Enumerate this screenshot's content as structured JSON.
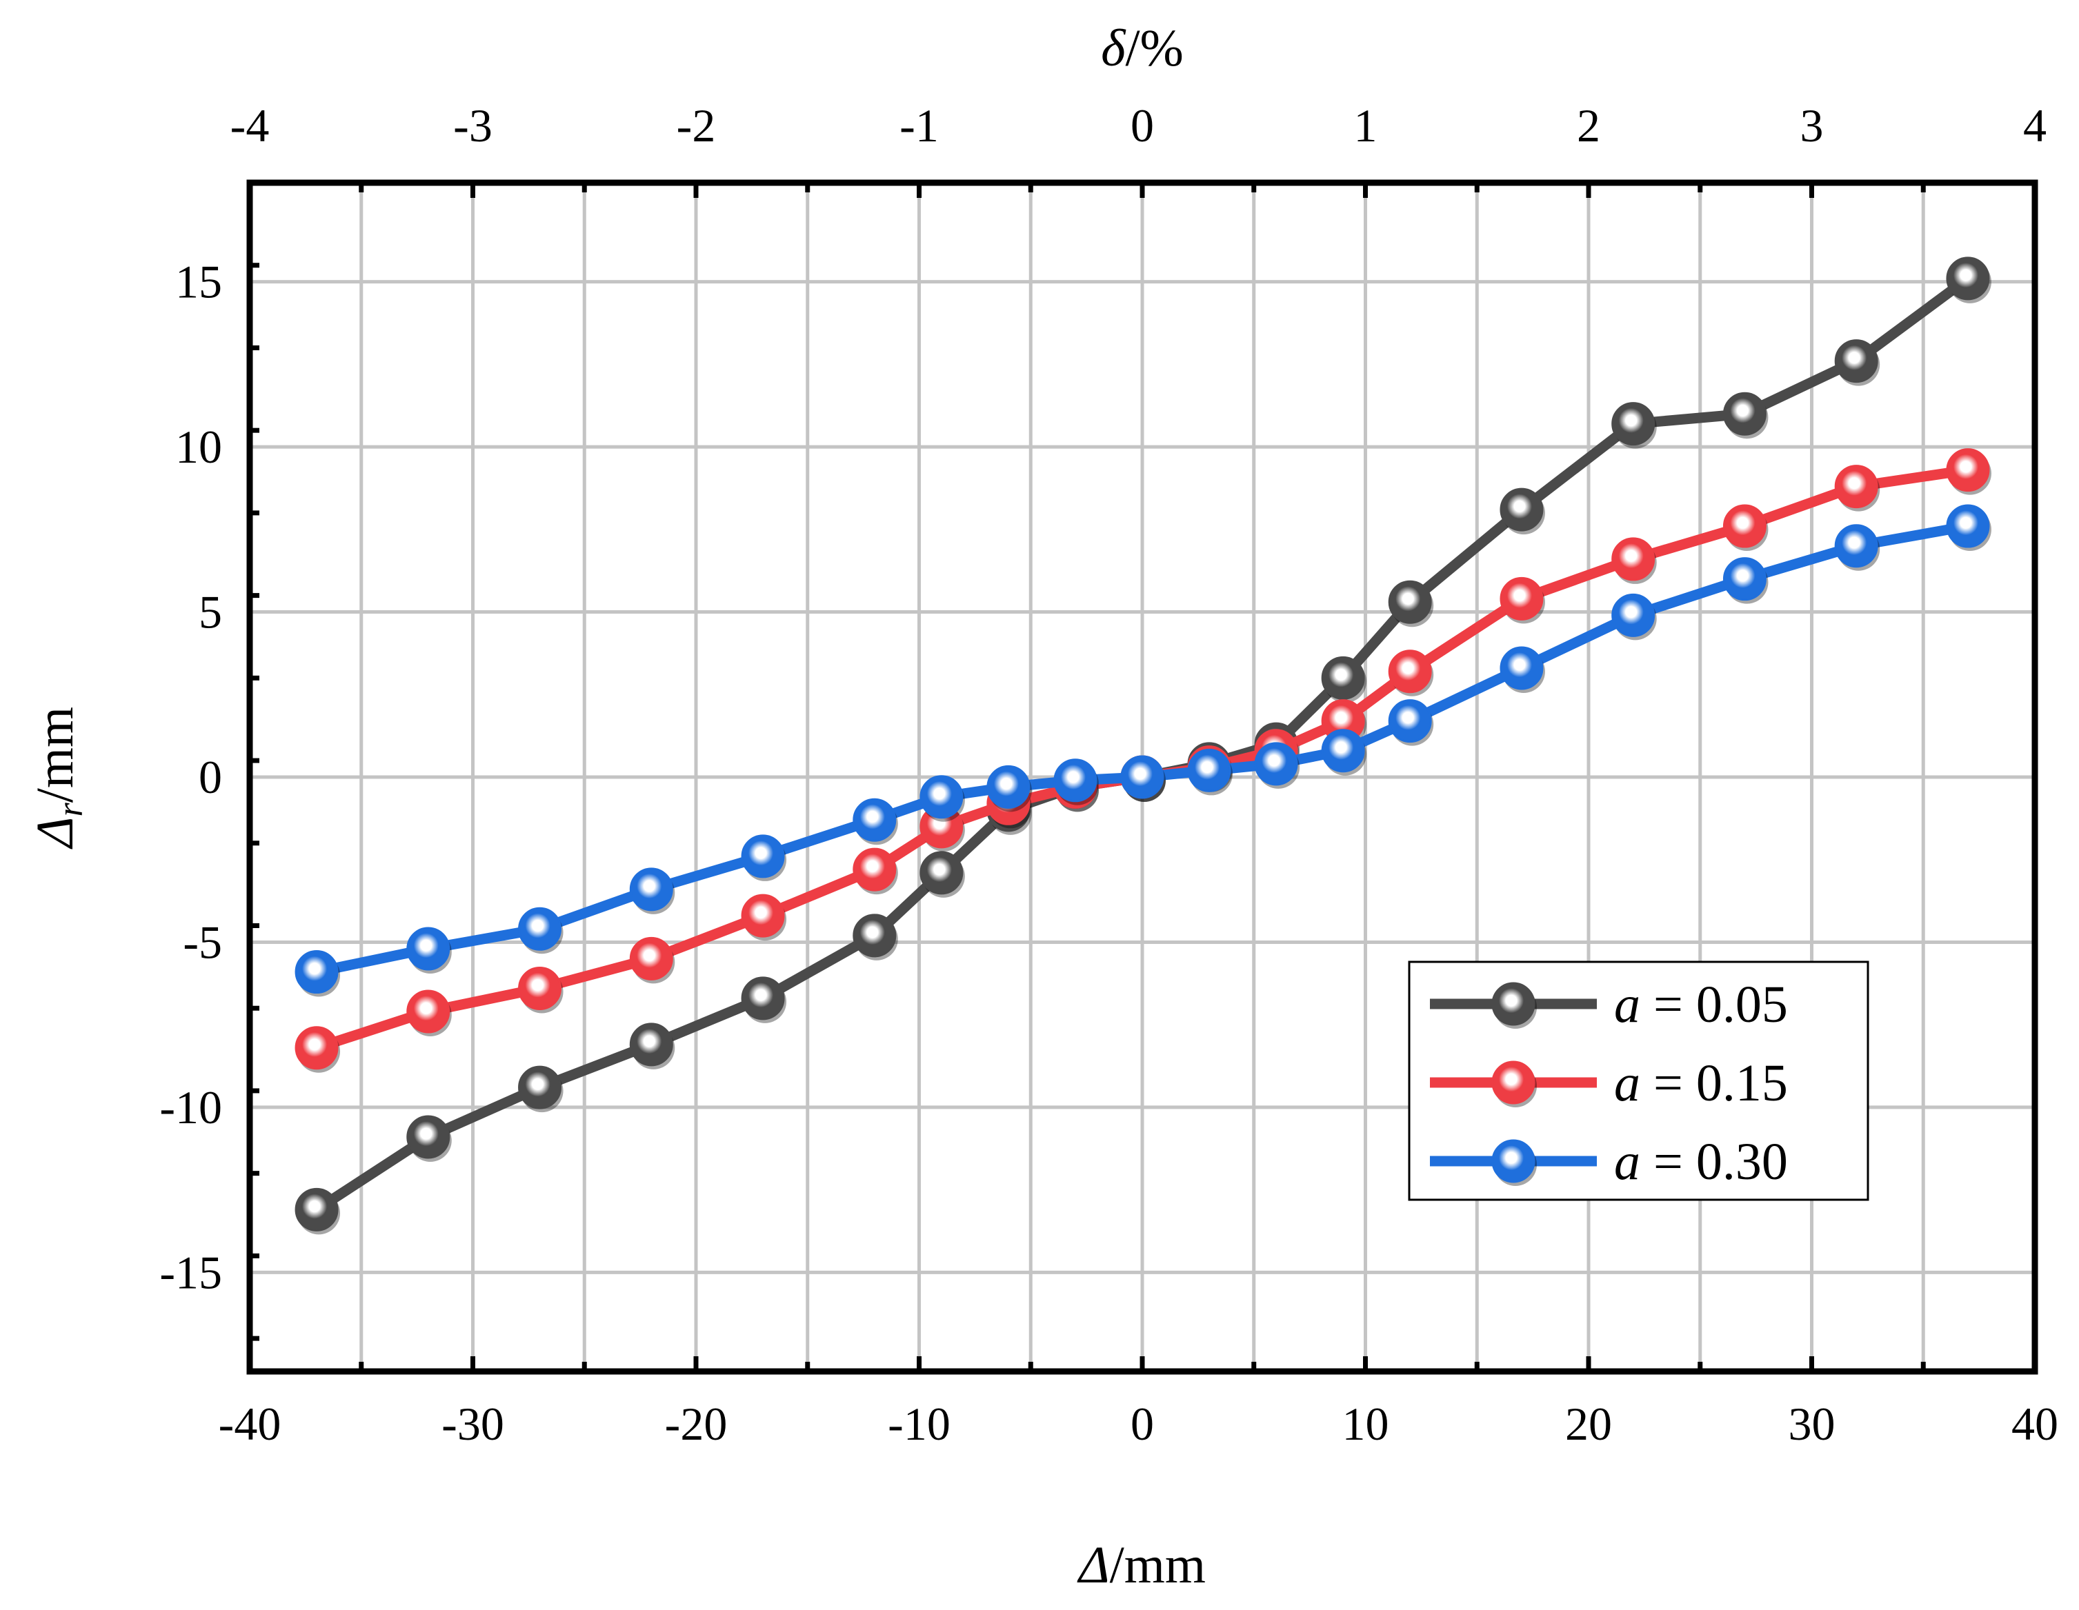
{
  "chart_data": {
    "type": "line",
    "title": "",
    "xlabel": {
      "symbol": "Δ",
      "unit": "/mm"
    },
    "ylabel": {
      "symbol": "Δ",
      "sub": "r",
      "unit": "/mm"
    },
    "x2label": {
      "symbol": "δ",
      "unit": "/%"
    },
    "xlim": [
      -40,
      40
    ],
    "ylim": [
      -18,
      18
    ],
    "x2lim": [
      -4,
      4
    ],
    "xticks": [
      -40,
      -30,
      -20,
      -10,
      0,
      10,
      20,
      30,
      40
    ],
    "xtick_labels": [
      "-40",
      "-30",
      "-20",
      "-10",
      "0",
      "10",
      "20",
      "30",
      "40"
    ],
    "yticks": [
      -15,
      -10,
      -5,
      0,
      5,
      10,
      15
    ],
    "ytick_labels": [
      "-15",
      "-10",
      "-5",
      "0",
      "5",
      "10",
      "15"
    ],
    "x2ticks": [
      -4,
      -3,
      -2,
      -1,
      0,
      1,
      2,
      3,
      4
    ],
    "x2tick_labels": [
      "-4",
      "-3",
      "-2",
      "-1",
      "0",
      "1",
      "2",
      "3",
      "4"
    ],
    "grid": true,
    "legend_position": "lower-right",
    "x": [
      -37,
      -32,
      -27,
      -22,
      -17,
      -12,
      -9,
      -6,
      -3,
      0,
      3,
      6,
      9,
      12,
      17,
      22,
      27,
      32,
      37
    ],
    "series": [
      {
        "name": "a = 0.05",
        "legend_var": "a",
        "legend_rest": " = 0.05",
        "color": "#4a4a4a",
        "values": [
          -13.1,
          -10.9,
          -9.4,
          -8.1,
          -6.7,
          -4.8,
          -2.9,
          -1.0,
          -0.3,
          0.0,
          0.4,
          1.0,
          3.0,
          5.3,
          8.1,
          10.7,
          11.0,
          12.6,
          15.1
        ]
      },
      {
        "name": "a = 0.15",
        "legend_var": "a",
        "legend_rest": " = 0.15",
        "color": "#ee3d44",
        "values": [
          -8.2,
          -7.1,
          -6.4,
          -5.5,
          -4.2,
          -2.8,
          -1.5,
          -0.8,
          -0.3,
          0.0,
          0.3,
          0.8,
          1.7,
          3.2,
          5.4,
          6.6,
          7.6,
          8.8,
          9.3
        ]
      },
      {
        "name": "a = 0.30",
        "legend_var": "a",
        "legend_rest": " = 0.30",
        "color": "#1f6fdc",
        "values": [
          -5.9,
          -5.2,
          -4.6,
          -3.4,
          -2.4,
          -1.3,
          -0.6,
          -0.3,
          -0.1,
          0.0,
          0.2,
          0.4,
          0.8,
          1.7,
          3.3,
          4.9,
          6.0,
          7.0,
          7.6
        ]
      }
    ]
  }
}
